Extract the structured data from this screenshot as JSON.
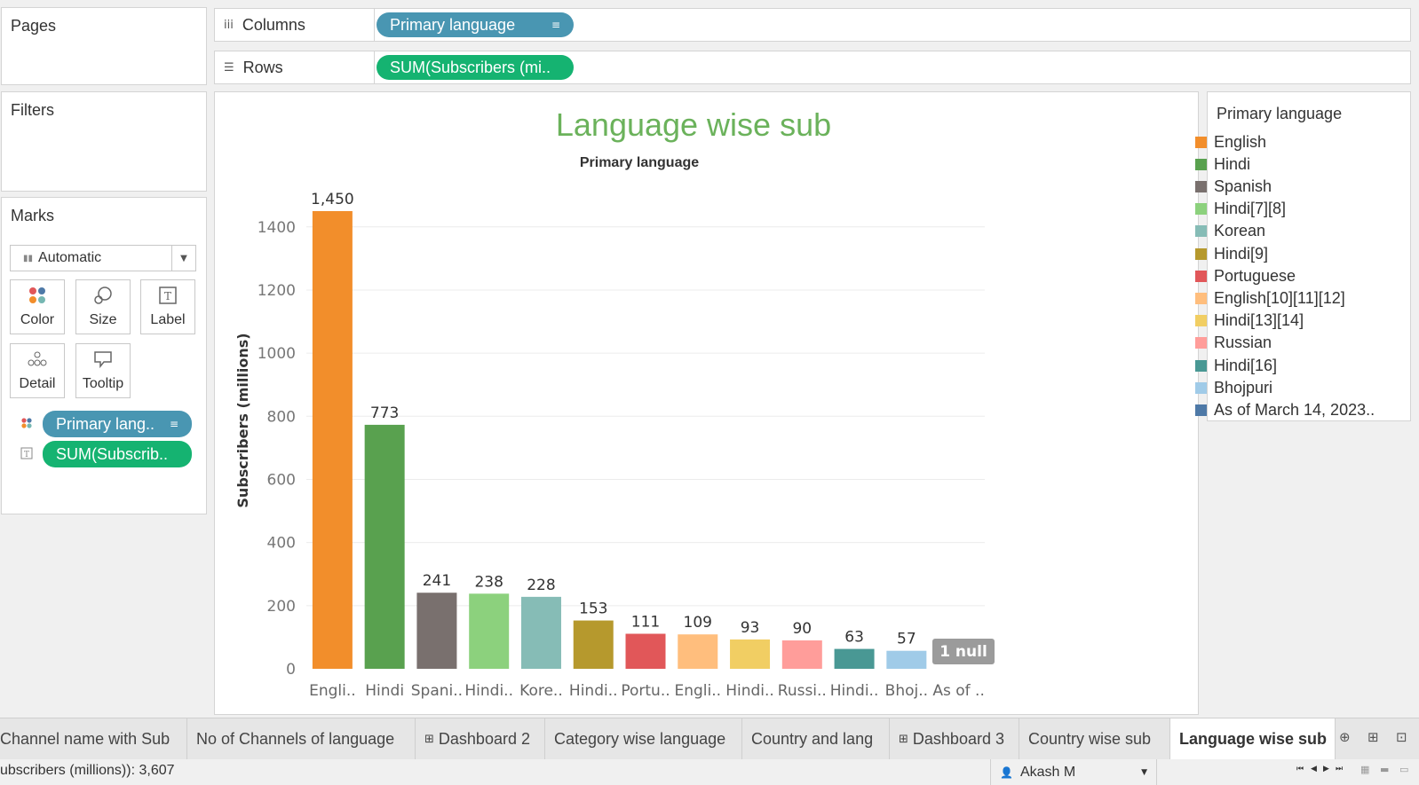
{
  "panes": {
    "pages_title": "Pages",
    "filters_title": "Filters",
    "marks_title": "Marks"
  },
  "shelves": {
    "columns_label": "Columns",
    "columns_pill": "Primary language",
    "rows_label": "Rows",
    "rows_pill": "SUM(Subscribers (mi.."
  },
  "marks": {
    "type": "Automatic",
    "buttons": [
      "Color",
      "Size",
      "Label",
      "Detail",
      "Tooltip"
    ],
    "pills": [
      "Primary lang..",
      "SUM(Subscrib.."
    ]
  },
  "chart_data": {
    "type": "bar",
    "title": "Language wise sub",
    "subtitle": "Primary language",
    "ylabel": "Subscribers (millions)",
    "ylim": [
      0,
      1450
    ],
    "yticks": [
      0,
      200,
      400,
      600,
      800,
      1000,
      1200,
      1400
    ],
    "grid": true,
    "categories": [
      "Engli..",
      "Hindi",
      "Spani..",
      "Hindi..",
      "Kore..",
      "Hindi..",
      "Portu..",
      "Engli..",
      "Hindi..",
      "Russi..",
      "Hindi..",
      "Bhoj..",
      "As of .."
    ],
    "values": [
      1450,
      773,
      241,
      238,
      228,
      153,
      111,
      109,
      93,
      90,
      63,
      57,
      null
    ],
    "value_labels": [
      "1,450",
      "773",
      "241",
      "238",
      "228",
      "153",
      "111",
      "109",
      "93",
      "90",
      "63",
      "57",
      ""
    ],
    "colors": [
      "#f28e2b",
      "#59a14f",
      "#79706e",
      "#8cd17d",
      "#86bcb6",
      "#b6992d",
      "#e15759",
      "#ffbe7d",
      "#f1ce63",
      "#ff9d9a",
      "#499894",
      "#a0cbe8",
      "#4e79a7"
    ],
    "null_indicator": "1 null"
  },
  "legend": {
    "title": "Primary language",
    "items": [
      {
        "label": "English",
        "color": "#f28e2b"
      },
      {
        "label": "Hindi",
        "color": "#59a14f"
      },
      {
        "label": "Spanish",
        "color": "#79706e"
      },
      {
        "label": "Hindi[7][8]",
        "color": "#8cd17d"
      },
      {
        "label": "Korean",
        "color": "#86bcb6"
      },
      {
        "label": "Hindi[9]",
        "color": "#b6992d"
      },
      {
        "label": "Portuguese",
        "color": "#e15759"
      },
      {
        "label": "English[10][11][12]",
        "color": "#ffbe7d"
      },
      {
        "label": "Hindi[13][14]",
        "color": "#f1ce63"
      },
      {
        "label": "Russian",
        "color": "#ff9d9a"
      },
      {
        "label": "Hindi[16]",
        "color": "#499894"
      },
      {
        "label": "Bhojpuri",
        "color": "#a0cbe8"
      },
      {
        "label": "As of March 14, 2023..",
        "color": "#4e79a7"
      }
    ]
  },
  "tabs": [
    {
      "label": "Channel name with Sub",
      "dashboard": false
    },
    {
      "label": "No of Channels of language",
      "dashboard": false
    },
    {
      "label": "Dashboard 2",
      "dashboard": true
    },
    {
      "label": "Category wise language",
      "dashboard": false
    },
    {
      "label": "Country and lang",
      "dashboard": false
    },
    {
      "label": "Dashboard 3",
      "dashboard": true
    },
    {
      "label": "Country wise sub",
      "dashboard": false
    },
    {
      "label": "Language wise sub",
      "dashboard": false,
      "active": true
    }
  ],
  "status": {
    "summary": "ubscribers (millions)): 3,607",
    "user": "Akash M"
  }
}
